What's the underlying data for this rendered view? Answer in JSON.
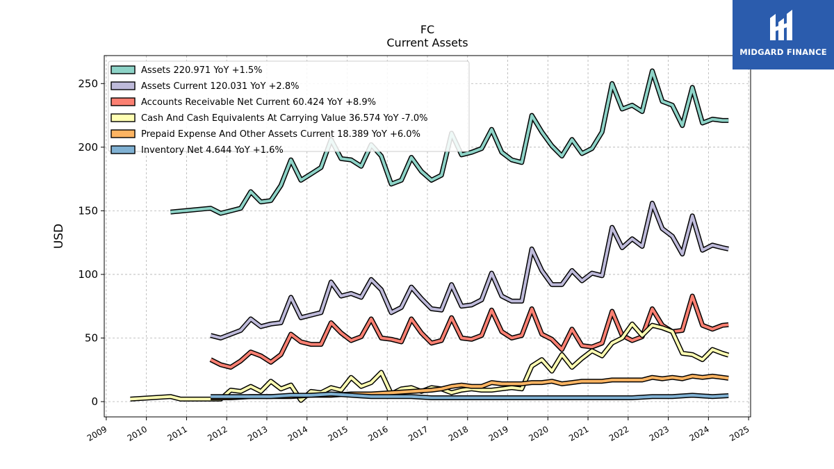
{
  "header": {
    "ticker": "FC",
    "subtitle": "Current  Assets"
  },
  "logo": {
    "name": "MIDGARD FINANCE",
    "icon": "midgard-logo-icon"
  },
  "chart_data": {
    "type": "line",
    "ylabel": "USD",
    "xlim": [
      2008.95,
      2025.05
    ],
    "ylim": [
      -12,
      272
    ],
    "yticks": [
      0,
      50,
      100,
      150,
      200,
      250
    ],
    "xticks": [
      2009,
      2010,
      2011,
      2012,
      2013,
      2014,
      2015,
      2016,
      2017,
      2018,
      2019,
      2020,
      2021,
      2022,
      2023,
      2024,
      2025
    ],
    "grid": true,
    "legend_position": "top-left",
    "series": [
      {
        "name": "Assets",
        "legend": "Assets  220.971 YoY +1.5%",
        "color": "#8dd3c7",
        "x": [
          2010.6,
          2011.6,
          2011.85,
          2012.1,
          2012.35,
          2012.6,
          2012.85,
          2013.1,
          2013.35,
          2013.6,
          2013.85,
          2014.1,
          2014.35,
          2014.6,
          2014.85,
          2015.1,
          2015.35,
          2015.6,
          2015.85,
          2016.1,
          2016.35,
          2016.6,
          2016.85,
          2017.1,
          2017.35,
          2017.6,
          2017.85,
          2018.1,
          2018.35,
          2018.6,
          2018.85,
          2019.1,
          2019.35,
          2019.6,
          2019.85,
          2020.1,
          2020.35,
          2020.6,
          2020.85,
          2021.1,
          2021.35,
          2021.6,
          2021.85,
          2022.1,
          2022.35,
          2022.6,
          2022.85,
          2023.1,
          2023.35,
          2023.6,
          2023.85,
          2024.1,
          2024.35,
          2024.5
        ],
        "values": [
          149,
          152,
          148,
          150,
          152,
          165,
          157,
          158,
          170,
          190,
          174,
          179,
          184,
          206,
          191,
          190,
          185,
          202,
          193,
          171,
          174,
          192,
          181,
          174,
          178,
          211,
          194,
          196,
          199,
          214,
          196,
          190,
          188,
          225,
          212,
          201,
          193,
          206,
          195,
          199,
          212,
          250,
          230,
          233,
          228,
          260,
          236,
          233,
          217,
          247,
          219,
          222,
          221,
          220.971
        ]
      },
      {
        "name": "Assets Current",
        "legend": "Assets Current  120.031 YoY +2.8%",
        "color": "#bebada",
        "x": [
          2011.6,
          2011.85,
          2012.1,
          2012.35,
          2012.6,
          2012.85,
          2013.1,
          2013.35,
          2013.6,
          2013.85,
          2014.1,
          2014.35,
          2014.6,
          2014.85,
          2015.1,
          2015.35,
          2015.6,
          2015.85,
          2016.1,
          2016.35,
          2016.6,
          2016.85,
          2017.1,
          2017.35,
          2017.6,
          2017.85,
          2018.1,
          2018.35,
          2018.6,
          2018.85,
          2019.1,
          2019.35,
          2019.6,
          2019.85,
          2020.1,
          2020.35,
          2020.6,
          2020.85,
          2021.1,
          2021.35,
          2021.6,
          2021.85,
          2022.1,
          2022.35,
          2022.6,
          2022.85,
          2023.1,
          2023.35,
          2023.6,
          2023.85,
          2024.1,
          2024.35,
          2024.5
        ],
        "values": [
          52,
          50,
          53,
          56,
          65,
          59,
          61,
          62,
          82,
          66,
          68,
          70,
          94,
          83,
          85,
          82,
          96,
          88,
          70,
          74,
          90,
          81,
          73,
          72,
          92,
          75,
          76,
          80,
          101,
          83,
          79,
          79,
          120,
          103,
          92,
          92,
          103,
          95,
          101,
          99,
          137,
          121,
          128,
          122,
          156,
          136,
          130,
          116,
          146,
          119,
          123,
          121,
          120.031
        ]
      },
      {
        "name": "Accounts Receivable Net Current",
        "legend": "Accounts Receivable Net Current  60.424 YoY +8.9%",
        "color": "#fb8072",
        "x": [
          2011.6,
          2011.85,
          2012.1,
          2012.35,
          2012.6,
          2012.85,
          2013.1,
          2013.35,
          2013.6,
          2013.85,
          2014.1,
          2014.35,
          2014.6,
          2014.85,
          2015.1,
          2015.35,
          2015.6,
          2015.85,
          2016.1,
          2016.35,
          2016.6,
          2016.85,
          2017.1,
          2017.35,
          2017.6,
          2017.85,
          2018.1,
          2018.35,
          2018.6,
          2018.85,
          2019.1,
          2019.35,
          2019.6,
          2019.85,
          2020.1,
          2020.35,
          2020.6,
          2020.85,
          2021.1,
          2021.35,
          2021.6,
          2021.85,
          2022.1,
          2022.35,
          2022.6,
          2022.85,
          2023.1,
          2023.35,
          2023.6,
          2023.85,
          2024.1,
          2024.35,
          2024.5
        ],
        "values": [
          33,
          29,
          27,
          32,
          39,
          36,
          31,
          37,
          53,
          47,
          45,
          45,
          62,
          54,
          48,
          51,
          65,
          50,
          49,
          47,
          65,
          54,
          46,
          48,
          66,
          50,
          49,
          52,
          72,
          55,
          50,
          52,
          73,
          53,
          49,
          41,
          57,
          44,
          43,
          46,
          71,
          52,
          48,
          51,
          73,
          60,
          55,
          56,
          83,
          60,
          57,
          60,
          60.424
        ]
      },
      {
        "name": "Cash And Cash Equivalents At Carrying Value",
        "legend": "Cash And Cash Equivalents At Carrying Value  36.574 YoY -7.0%",
        "color": "#ffffb3",
        "x": [
          2009.6,
          2010.6,
          2010.85,
          2011.1,
          2011.35,
          2011.6,
          2011.85,
          2012.1,
          2012.35,
          2012.6,
          2012.85,
          2013.1,
          2013.35,
          2013.6,
          2013.85,
          2014.1,
          2014.35,
          2014.6,
          2014.85,
          2015.1,
          2015.35,
          2015.6,
          2015.85,
          2016.1,
          2016.35,
          2016.6,
          2016.85,
          2017.1,
          2017.35,
          2017.6,
          2017.85,
          2018.1,
          2018.35,
          2018.6,
          2018.85,
          2019.1,
          2019.35,
          2019.6,
          2019.85,
          2020.1,
          2020.35,
          2020.6,
          2020.85,
          2021.1,
          2021.35,
          2021.6,
          2021.85,
          2022.1,
          2022.35,
          2022.6,
          2022.85,
          2023.1,
          2023.35,
          2023.6,
          2023.85,
          2024.1,
          2024.35,
          2024.5
        ],
        "values": [
          2,
          4,
          2,
          2,
          2,
          2,
          2,
          9,
          8,
          12,
          8,
          16,
          10,
          13,
          1,
          8,
          7,
          11,
          9,
          19,
          12,
          15,
          23,
          6,
          10,
          11,
          8,
          11,
          10,
          7,
          9,
          10,
          9,
          9,
          10,
          11,
          10,
          28,
          33,
          24,
          37,
          27,
          34,
          40,
          36,
          46,
          50,
          61,
          52,
          60,
          58,
          55,
          38,
          37,
          33,
          41,
          38,
          36.574
        ]
      },
      {
        "name": "Prepaid Expense And Other Assets Current",
        "legend": "Prepaid Expense And Other Assets Current  18.389 YoY +6.0%",
        "color": "#fdb462",
        "x": [
          2011.6,
          2012.1,
          2012.6,
          2013.1,
          2013.6,
          2014.1,
          2014.6,
          2015.1,
          2015.6,
          2016.1,
          2016.6,
          2017.1,
          2017.35,
          2017.6,
          2017.85,
          2018.1,
          2018.35,
          2018.6,
          2018.85,
          2019.1,
          2019.35,
          2019.6,
          2019.85,
          2020.1,
          2020.35,
          2020.6,
          2020.85,
          2021.1,
          2021.35,
          2021.6,
          2021.85,
          2022.1,
          2022.35,
          2022.6,
          2022.85,
          2023.1,
          2023.35,
          2023.6,
          2023.85,
          2024.1,
          2024.35,
          2024.5
        ],
        "values": [
          3,
          3,
          4,
          4,
          4,
          5,
          5,
          6,
          6,
          7,
          8,
          9,
          10,
          12,
          13,
          12,
          12,
          15,
          14,
          14,
          14,
          15,
          15,
          16,
          14,
          15,
          16,
          16,
          16,
          17,
          17,
          17,
          17,
          19,
          18,
          19,
          18,
          20,
          19,
          20,
          19,
          18.389
        ]
      },
      {
        "name": "Inventory Net",
        "legend": "Inventory Net  4.644 YoY +1.6%",
        "color": "#80b1d3",
        "x": [
          2011.6,
          2012.1,
          2012.6,
          2013.1,
          2013.6,
          2014.1,
          2014.6,
          2015.1,
          2015.6,
          2016.1,
          2016.6,
          2017.1,
          2017.6,
          2018.1,
          2018.6,
          2019.1,
          2019.6,
          2020.1,
          2020.6,
          2021.1,
          2021.6,
          2022.1,
          2022.6,
          2023.1,
          2023.6,
          2024.1,
          2024.5
        ],
        "values": [
          4,
          4,
          4,
          4,
          5,
          5,
          6,
          5,
          4,
          4,
          4,
          3,
          3,
          3,
          3,
          3,
          3,
          3,
          3,
          3,
          3,
          3,
          4,
          4,
          5,
          4,
          4.644
        ]
      }
    ]
  }
}
